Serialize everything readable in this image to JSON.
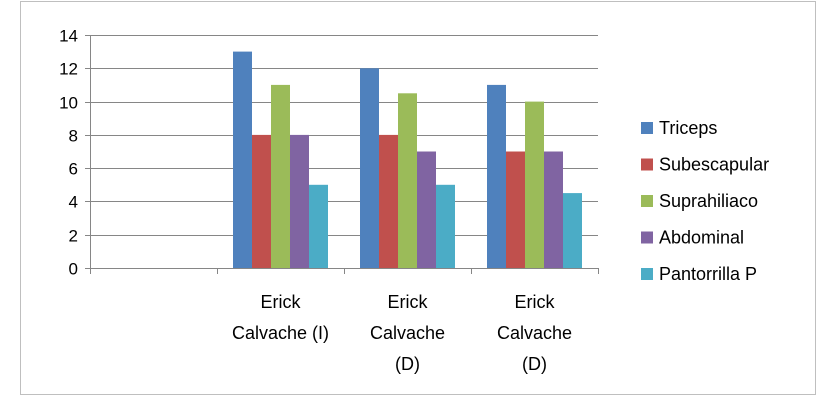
{
  "chart_data": {
    "type": "bar",
    "categories": [
      "",
      [
        "Erick",
        "Calvache (I)"
      ],
      [
        "Erick",
        "Calvache",
        "(D)"
      ],
      [
        "Erick",
        "Calvache",
        "(D)"
      ]
    ],
    "series": [
      {
        "name": "Triceps",
        "color": "#4F81BD",
        "values": [
          null,
          13,
          12,
          11
        ]
      },
      {
        "name": "Subescapular",
        "color": "#C0504D",
        "values": [
          null,
          8,
          8,
          7
        ]
      },
      {
        "name": "Suprahiliaco",
        "color": "#9BBB59",
        "values": [
          null,
          11,
          10.5,
          10
        ]
      },
      {
        "name": "Abdominal",
        "color": "#8064A2",
        "values": [
          null,
          8,
          7,
          7
        ]
      },
      {
        "name": "Pantorrilla  P",
        "color": "#4BACC6",
        "values": [
          null,
          5,
          5,
          4.5
        ]
      }
    ],
    "ylim": [
      0,
      14
    ],
    "yticks": [
      0,
      2,
      4,
      6,
      8,
      10,
      12,
      14
    ],
    "grid": true,
    "legend_position": "right",
    "title": "",
    "xlabel": "",
    "ylabel": ""
  }
}
